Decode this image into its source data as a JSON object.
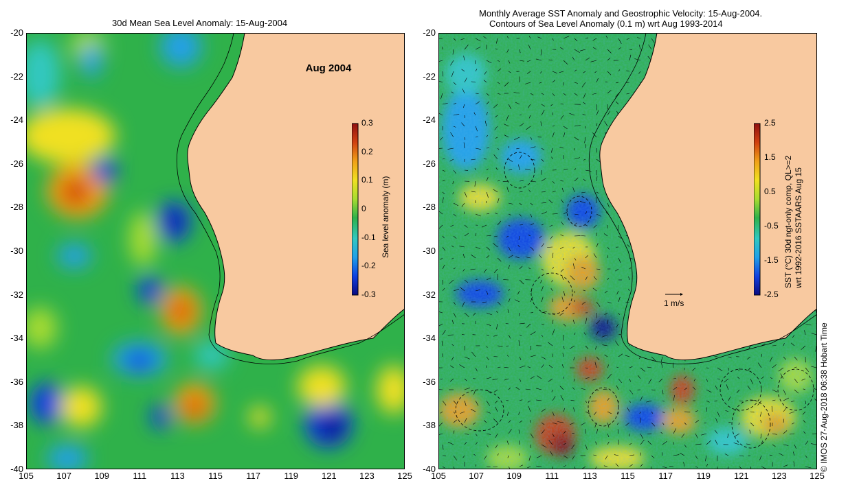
{
  "left_panel": {
    "title": "30d Mean Sea Level Anomaly: 15-Aug-2004",
    "date_label": "Aug 2004",
    "colorbar": {
      "label": "Sea level anomaly (m)",
      "ticks": [
        "0.3",
        "0.2",
        "0.1",
        "0",
        "-0.1",
        "-0.2",
        "-0.3"
      ],
      "min": -0.3,
      "max": 0.3
    }
  },
  "right_panel": {
    "title_line1": "Monthly Average SST Anomaly  and Geostrophic Velocity: 15-Aug-2004.",
    "title_line2": "Contours of Sea Level Anomaly (0.1 m) wrt Aug 1993-2014",
    "velocity_scale_label": "1 m/s",
    "colorbar": {
      "label_line1": "SST (°C) 30d ngt-only comp, QL>=2",
      "label_line2": "wrt 1992-2016 SSTAARS Aug 15",
      "ticks": [
        "2.5",
        "1.5",
        "0.5",
        "-0.5",
        "-1.5",
        "-2.5"
      ],
      "min": -2.5,
      "max": 2.5
    }
  },
  "axes": {
    "lat_ticks": [
      "-20",
      "-22",
      "-24",
      "-26",
      "-28",
      "-30",
      "-32",
      "-34",
      "-36",
      "-38",
      "-40"
    ],
    "lon_ticks": [
      "105",
      "107",
      "109",
      "111",
      "113",
      "115",
      "117",
      "119",
      "121",
      "123",
      "125"
    ],
    "lat_range": [
      -40,
      -20
    ],
    "lon_range": [
      105,
      125
    ]
  },
  "credit": "© IMOS 27-Aug-2018 06:38 Hobart Time",
  "colors": {
    "land": "#f8c9a0",
    "ocean_base": "#2fb14a",
    "colormap": [
      "#0a0a80",
      "#1040e0",
      "#20a0e8",
      "#30c8c0",
      "#2fb14a",
      "#a8dc30",
      "#f0e020",
      "#f0a018",
      "#d04010",
      "#901010"
    ]
  }
}
